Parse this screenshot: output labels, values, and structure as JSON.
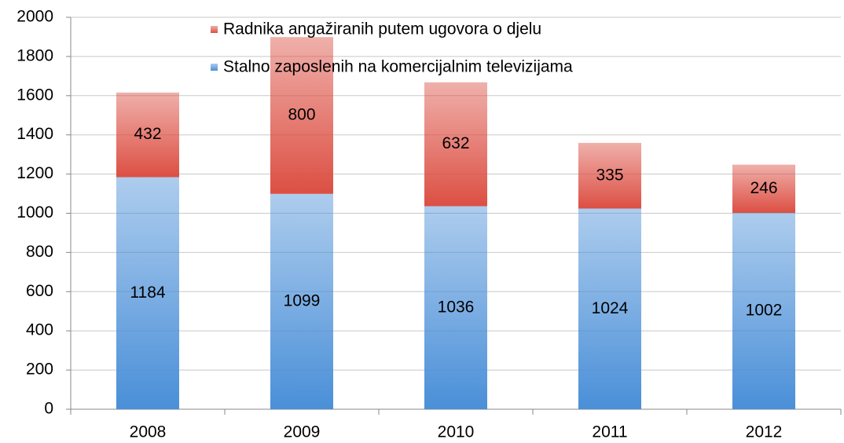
{
  "chart_data": {
    "type": "stacked_bar",
    "categories": [
      "2008",
      "2009",
      "2010",
      "2011",
      "2012"
    ],
    "series": [
      {
        "name": "Stalno zaposlenih na komercijalnim televizijama",
        "color": "#4a8fd8",
        "values": [
          1184,
          1099,
          1036,
          1024,
          1002
        ]
      },
      {
        "name": "Radnika angažiranih putem ugovora o djelu",
        "color": "#dc4f43",
        "values": [
          432,
          800,
          632,
          335,
          246
        ]
      }
    ],
    "ylim": [
      0,
      2000
    ],
    "yticks": [
      0,
      200,
      400,
      600,
      800,
      1000,
      1200,
      1400,
      1600,
      1800,
      2000
    ],
    "grid": true,
    "legend": "top"
  }
}
